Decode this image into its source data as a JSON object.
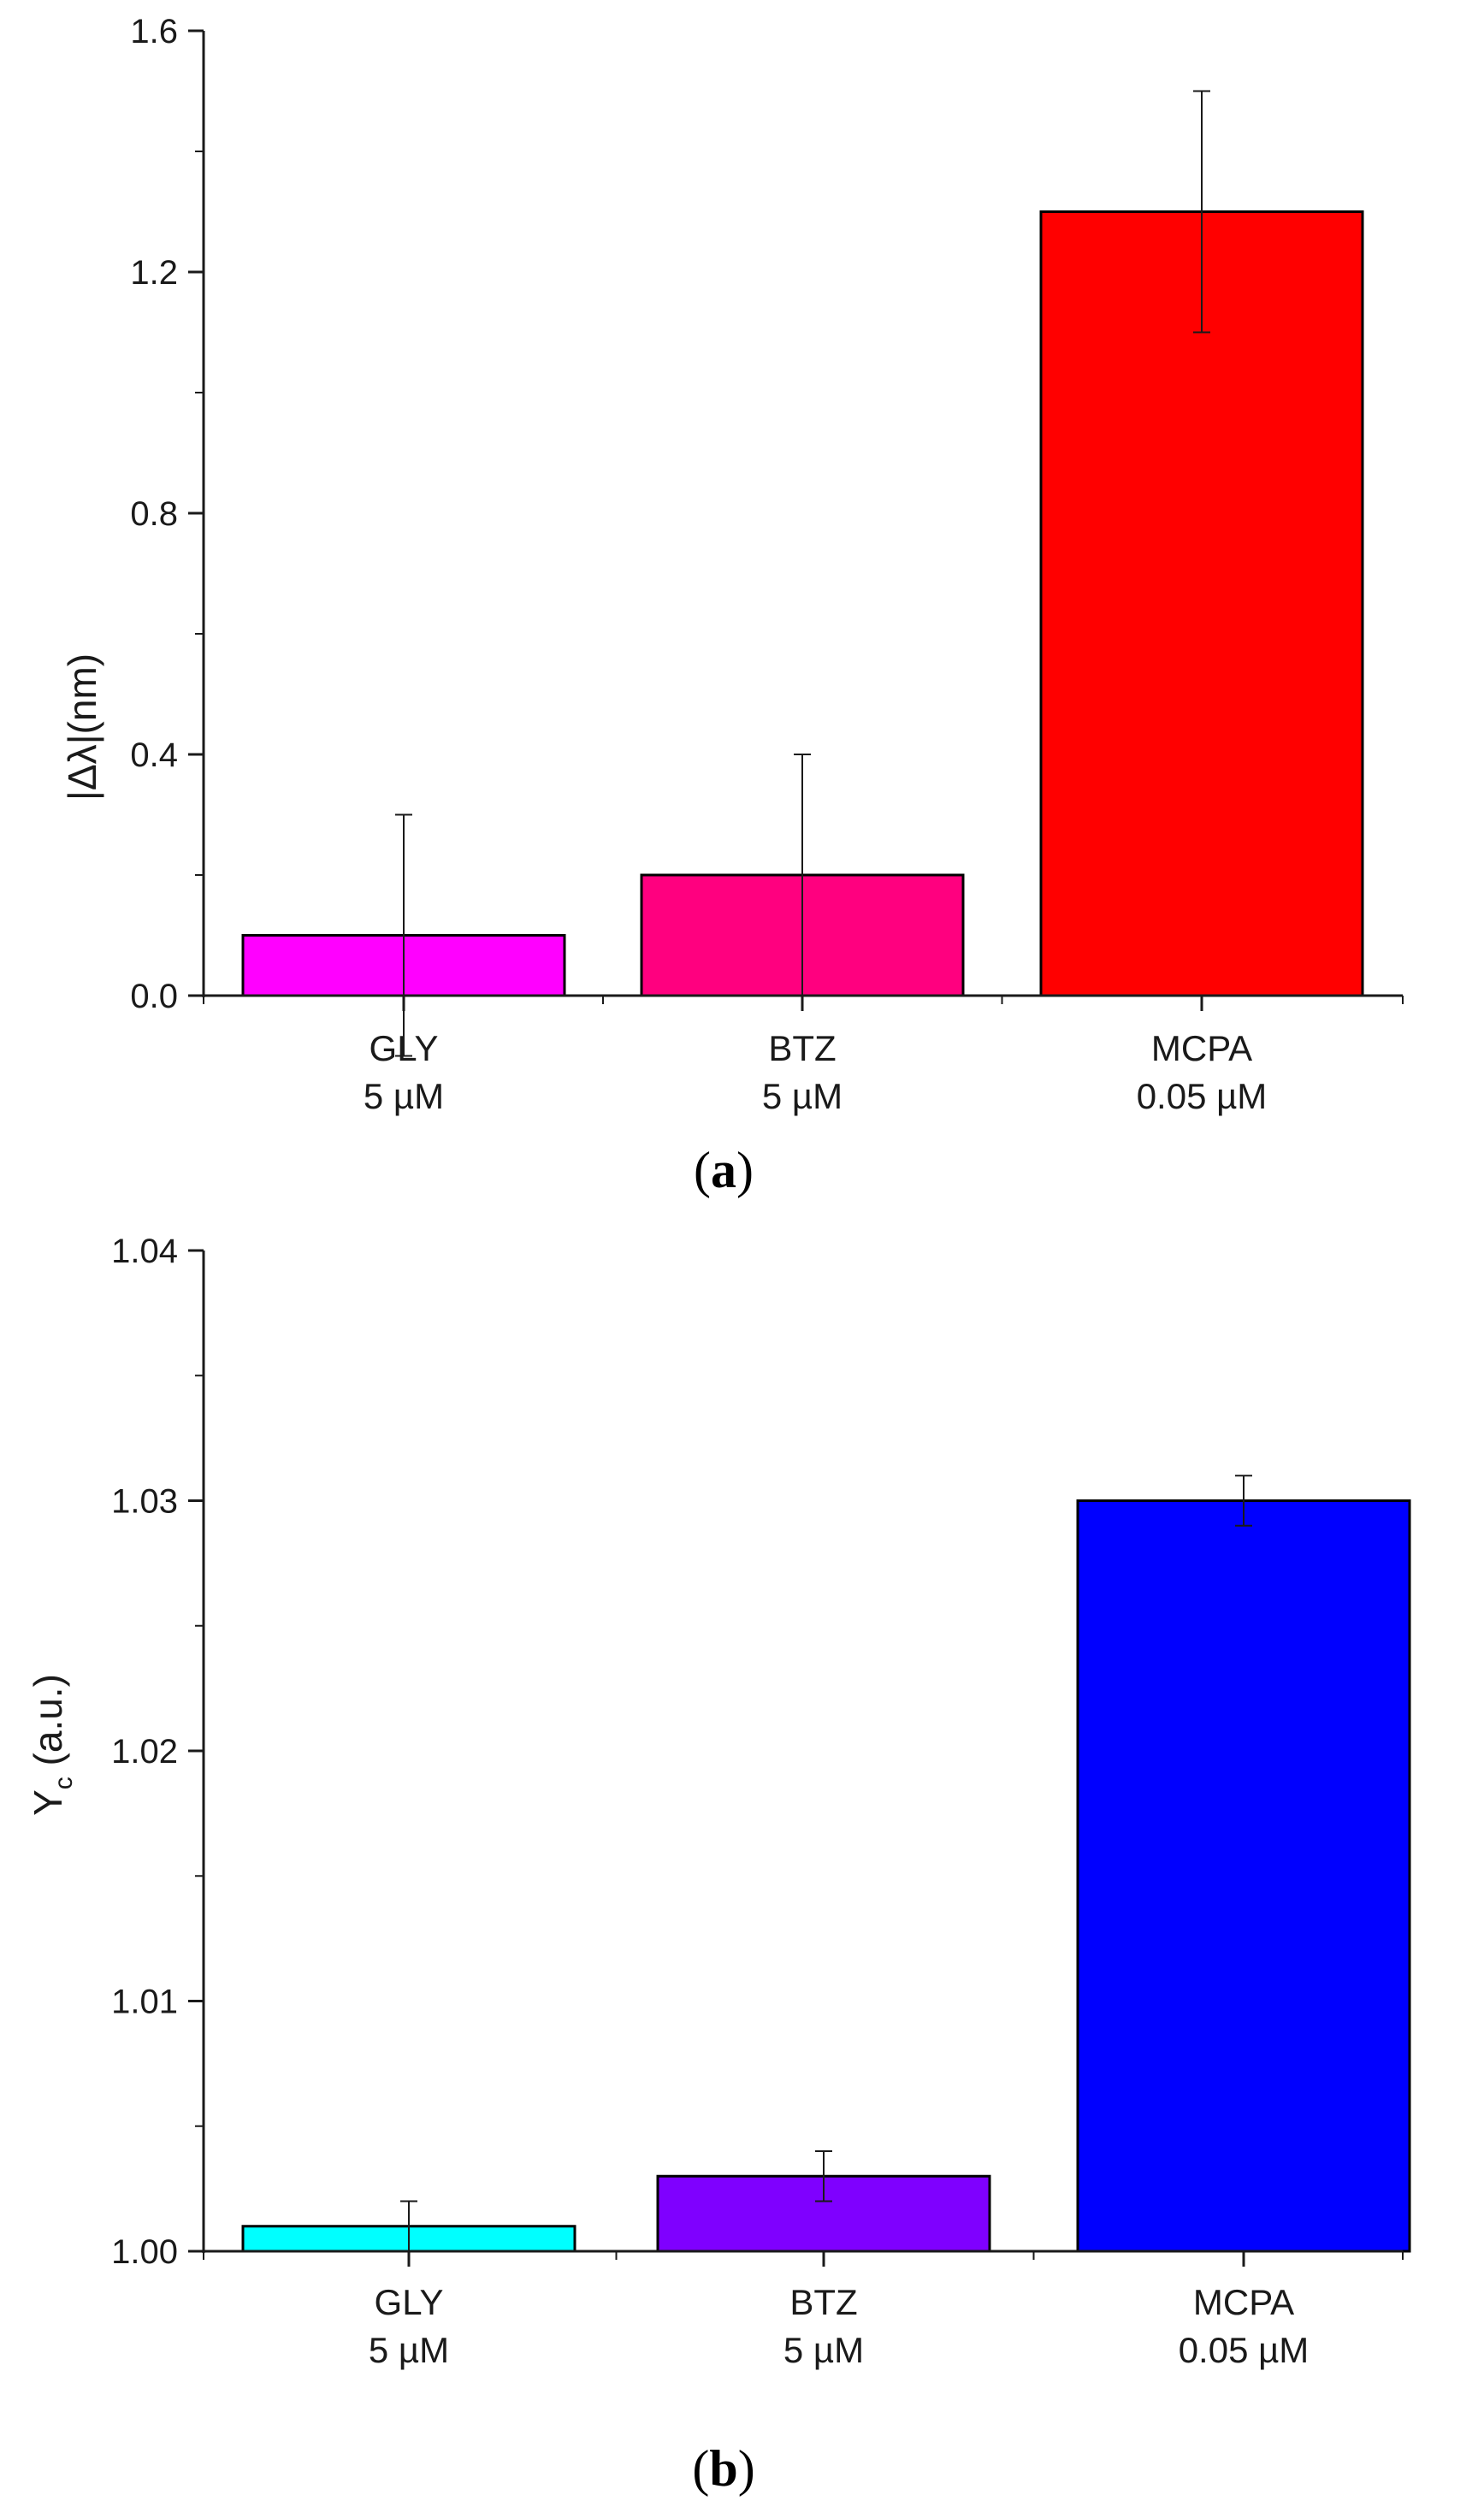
{
  "chart_data": [
    {
      "type": "bar",
      "panel_label": {
        "open": "(",
        "letter": "a",
        "close": ")"
      },
      "categories": [
        {
          "name": "GLY",
          "conc": "5 µM"
        },
        {
          "name": "BTZ",
          "conc": "5 µM"
        },
        {
          "name": "MCPA",
          "conc": "0.05 µM"
        }
      ],
      "values": [
        0.1,
        0.2,
        1.3
      ],
      "errors": [
        0.2,
        0.2,
        0.2
      ],
      "colors": [
        "#ff00ff",
        "#ff007f",
        "#ff0000"
      ],
      "ylabel": "|Δλ|(nm)",
      "xlabel": "",
      "ylim": [
        0.0,
        1.6
      ],
      "yticks": [
        {
          "value": 0.0,
          "label": "0.0"
        },
        {
          "value": 0.4,
          "label": "0.4"
        },
        {
          "value": 0.8,
          "label": "0.8"
        },
        {
          "value": 1.2,
          "label": "1.2"
        },
        {
          "value": 1.6,
          "label": "1.6"
        }
      ],
      "minor_step": 0.2,
      "grid": false
    },
    {
      "type": "bar",
      "panel_label": {
        "open": "(",
        "letter": "b",
        "close": ")"
      },
      "categories": [
        {
          "name": "GLY",
          "conc": "5 µM"
        },
        {
          "name": "BTZ",
          "conc": "5 µM"
        },
        {
          "name": "MCPA",
          "conc": "0.05 µM"
        }
      ],
      "values": [
        1.001,
        1.003,
        1.03
      ],
      "errors": [
        0.001,
        0.001,
        0.001
      ],
      "colors": [
        "#00ffff",
        "#7f00ff",
        "#0000ff"
      ],
      "ylabel": "Y",
      "ylabel_sub": "c",
      "ylabel_rest": " (a.u.)",
      "xlabel": "",
      "ylim": [
        1.0,
        1.04
      ],
      "yticks": [
        {
          "value": 1.0,
          "label": "1.00"
        },
        {
          "value": 1.01,
          "label": "1.01"
        },
        {
          "value": 1.02,
          "label": "1.02"
        },
        {
          "value": 1.03,
          "label": "1.03"
        },
        {
          "value": 1.04,
          "label": "1.04"
        }
      ],
      "minor_step": 0.005,
      "grid": false
    }
  ]
}
